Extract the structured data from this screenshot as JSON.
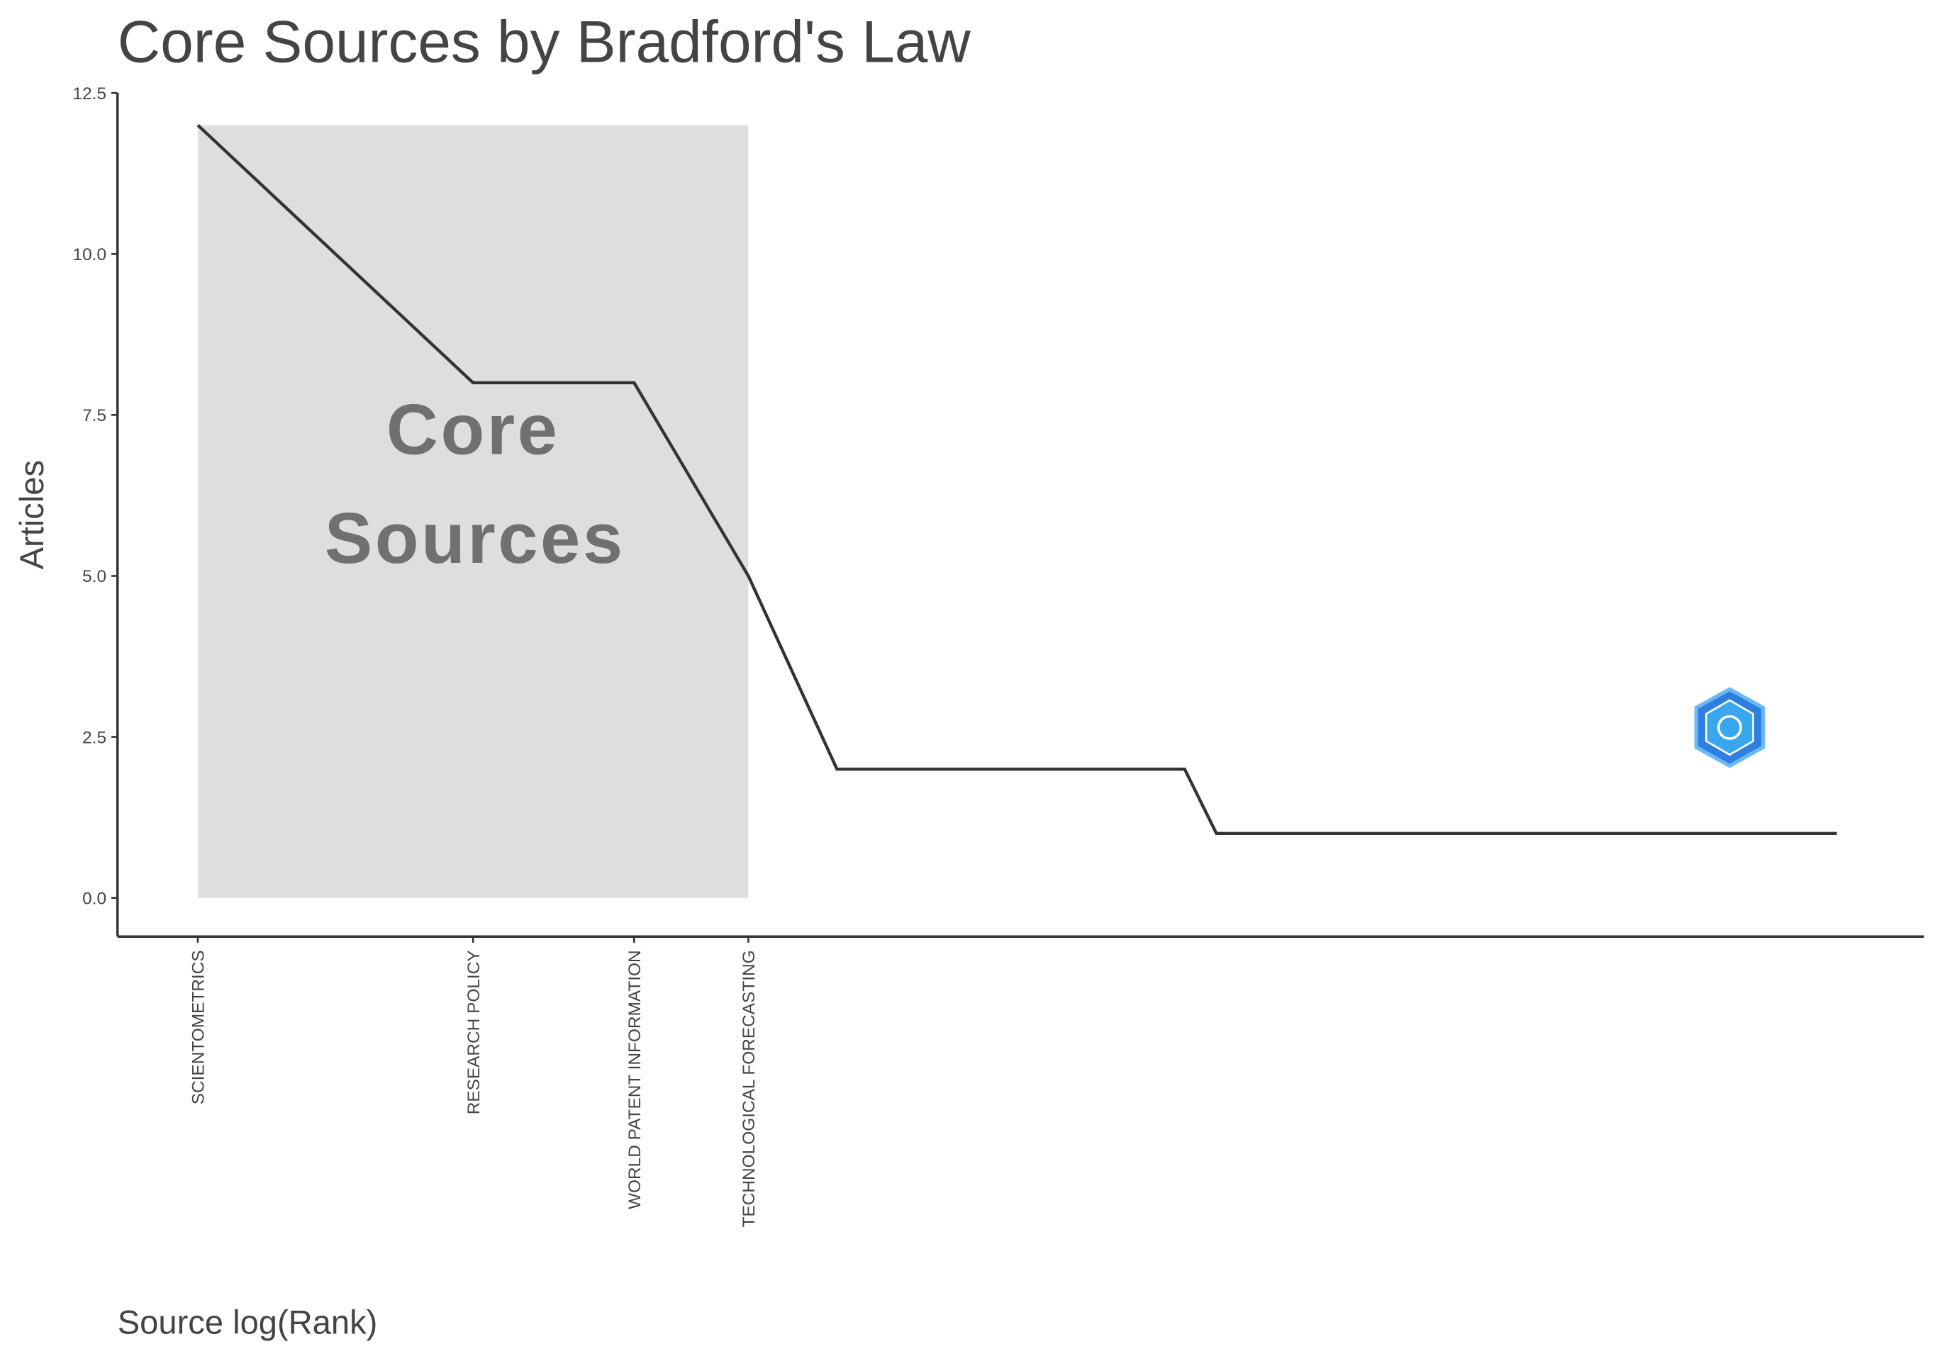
{
  "chart_data": {
    "type": "line",
    "title": "Core Sources by Bradford's Law",
    "x_label": "Source log(Rank)",
    "y_label": "Articles",
    "x": [
      1,
      2,
      3,
      4,
      5,
      12,
      13,
      62
    ],
    "categories": [
      "SCIENTOMETRICS",
      "RESEARCH POLICY",
      "WORLD PATENT INFORMATION",
      "TECHNOLOGICAL FORECASTING",
      null,
      null,
      null,
      null
    ],
    "values": [
      12,
      8,
      8,
      5,
      2,
      2,
      1,
      1
    ],
    "color": "#333333",
    "xlog": true,
    "xlim": [
      0.817,
      77.2
    ],
    "ylim": [
      -0.6,
      12.5
    ],
    "yticks": [
      {
        "value": 0,
        "label": "0.0"
      },
      2.5,
      {
        "value": 5,
        "label": "5.0"
      },
      7.5,
      {
        "value": 10,
        "label": "10.0"
      },
      12.5
    ],
    "core_zone": {
      "label": "Core Sources",
      "xlim": [
        1,
        4
      ],
      "ylim": [
        0,
        12
      ],
      "color": "#dedede"
    },
    "grid": false
  }
}
